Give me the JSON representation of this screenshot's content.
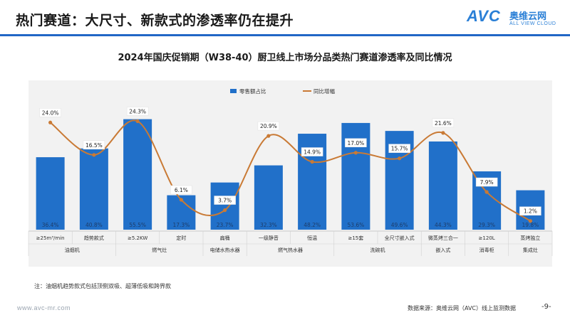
{
  "header": {
    "title": "热门赛道：大尺寸、新款式的渗透率仍在提升",
    "logo_avc": "AVC",
    "logo_cn": "奥维云网",
    "logo_en": "ALL VIEW CLOUD"
  },
  "chart_data": {
    "type": "bar",
    "title": "2024年国庆促销期（W38-40）厨卫线上市场分品类热门赛道渗透率及同比情况",
    "categories": [
      "≥25m³/min",
      "趋势款式",
      "≥5.2KW",
      "定时",
      "扁桶",
      "一级静音",
      "恒温",
      "≥15套",
      "全尺寸嵌入式",
      "微蒸烤三合一",
      "≥120L",
      "蒸烤独立"
    ],
    "groups": [
      {
        "name": "油烟机",
        "count": 2
      },
      {
        "name": "燃气灶",
        "count": 2
      },
      {
        "name": "电储水热水器",
        "count": 1
      },
      {
        "name": "燃气热水器",
        "count": 2
      },
      {
        "name": "洗碗机",
        "count": 2
      },
      {
        "name": "嵌入式",
        "count": 1
      },
      {
        "name": "消毒柜",
        "count": 1
      },
      {
        "name": "集成灶",
        "count": 1
      }
    ],
    "series": [
      {
        "name": "零售额占比",
        "kind": "bar",
        "color": "#2170c9",
        "values": [
          36.4,
          40.8,
          55.5,
          17.3,
          23.7,
          32.3,
          48.2,
          53.6,
          49.6,
          44.3,
          29.3,
          19.8
        ],
        "labels": [
          "36.4%",
          "40.8%",
          "55.5%",
          "17.3%",
          "23.7%",
          "32.3%",
          "48.2%",
          "53.6%",
          "49.6%",
          "44.3%",
          "29.3%",
          "19.8%"
        ]
      },
      {
        "name": "同比增幅",
        "kind": "line",
        "color": "#c97a35",
        "values": [
          24.0,
          16.5,
          24.3,
          6.1,
          3.7,
          20.9,
          14.9,
          17.0,
          15.7,
          21.6,
          7.9,
          1.2
        ],
        "labels": [
          "24.0%",
          "16.5%",
          "24.3%",
          "6.1%",
          "3.7%",
          "20.9%",
          "14.9%",
          "17.0%",
          "15.7%",
          "21.6%",
          "7.9%",
          "1.2%"
        ]
      }
    ],
    "ylim_bar": [
      0,
      60
    ],
    "ylim_line": [
      0,
      28
    ],
    "legend_position": "top-center",
    "grid": false
  },
  "footer": {
    "note": "注：油烟机趋势款式包括顶侧双吸、超薄低吸和跨界款",
    "url": "www.avc-mr.com",
    "source": "数据来源：奥维云网（AVC）线上监测数据",
    "page": "-9-"
  }
}
